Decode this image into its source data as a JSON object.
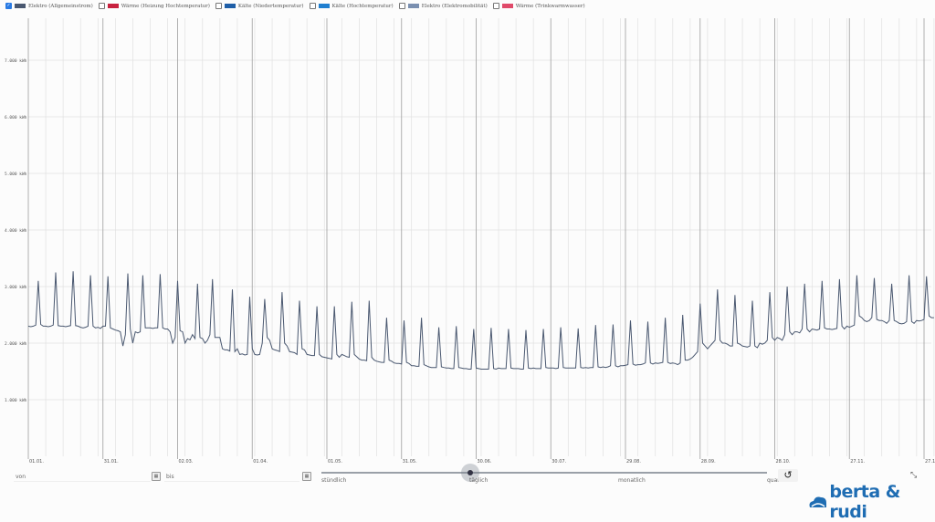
{
  "legend": [
    {
      "label": "Elektro (Allgemeinstrom)",
      "color": "#4a5870",
      "checked": true
    },
    {
      "label": "Wärme (Heizung Hochtemperatur)",
      "color": "#c8213f",
      "checked": false
    },
    {
      "label": "Kälte (Niedertemperatur)",
      "color": "#1f5fa8",
      "checked": false
    },
    {
      "label": "Kälte (Hochtemperatur)",
      "color": "#1f7fd0",
      "checked": false
    },
    {
      "label": "Elektro (Elektromobilität)",
      "color": "#7a8fb0",
      "checked": false
    },
    {
      "label": "Wärme (Trinkwarmwasser)",
      "color": "#e04a6a",
      "checked": false
    }
  ],
  "controls": {
    "from_label": "von",
    "to_label": "bis",
    "resolution_options": [
      "stündlich",
      "täglich",
      "monatlich",
      "quar"
    ],
    "resolution_selected": "täglich",
    "reset_icon": "undo-icon",
    "collapse_icon": "collapse-arrows-icon"
  },
  "logo": {
    "text": "berta & rudi",
    "color": "#1f6db3"
  },
  "chart_data": {
    "type": "line",
    "title": "",
    "xlabel": "",
    "ylabel": "",
    "ylim": [
      0,
      7800
    ],
    "yticks": [
      1000,
      2000,
      3000,
      4000,
      5000,
      6000,
      7000
    ],
    "ytick_labels": [
      "1.000 kWh",
      "2.000 kWh",
      "3.000 kWh",
      "4.000 kWh",
      "5.000 kWh",
      "6.000 kWh",
      "7.000 kWh"
    ],
    "xtick_labels": [
      "01.01.",
      "31.01.",
      "02.03.",
      "01.04.",
      "01.05.",
      "31.05.",
      "30.06.",
      "30.07.",
      "29.08.",
      "28.09.",
      "28.10.",
      "27.11.",
      "27.12."
    ],
    "xtick_days": [
      0,
      30,
      60,
      90,
      120,
      150,
      180,
      210,
      240,
      270,
      300,
      330,
      360
    ],
    "grid": true,
    "series": [
      {
        "name": "Elektro (Allgemeinstrom)",
        "color": "#4a5870",
        "values": [
          2300,
          2290,
          2300,
          2320,
          3100,
          2330,
          2300,
          2300,
          2290,
          2300,
          2320,
          3250,
          2310,
          2300,
          2300,
          2290,
          2300,
          2310,
          3270,
          2310,
          2300,
          2280,
          2270,
          2280,
          2300,
          3200,
          2300,
          2270,
          2280,
          2260,
          2300,
          2300,
          3180,
          2270,
          2250,
          2230,
          2220,
          2200,
          1950,
          2150,
          3230,
          2250,
          2000,
          2200,
          2180,
          2200,
          3200,
          2270,
          2270,
          2270,
          2260,
          2270,
          2270,
          3220,
          2270,
          2250,
          2250,
          2200,
          2000,
          2100,
          3100,
          2220,
          2200,
          2000,
          2080,
          2060,
          2150,
          2080,
          3050,
          2100,
          2080,
          2000,
          2050,
          2150,
          3130,
          2100,
          2100,
          2100,
          1900,
          1880,
          1880,
          1860,
          2950,
          1850,
          1900,
          1800,
          1810,
          1790,
          1800,
          2820,
          1900,
          1800,
          1790,
          1800,
          2000,
          2780,
          2100,
          2050,
          1900,
          1880,
          1870,
          1850,
          2900,
          2000,
          1950,
          1850,
          1840,
          1830,
          1800,
          2750,
          1900,
          1880,
          1800,
          1790,
          1780,
          1780,
          2650,
          1800,
          1760,
          1750,
          1740,
          1730,
          1720,
          2650,
          1800,
          1750,
          1800,
          1780,
          1760,
          1750,
          2730,
          1800,
          1760,
          1720,
          1700,
          1700,
          1690,
          2750,
          1750,
          1700,
          1680,
          1670,
          1660,
          1660,
          2450,
          1700,
          1680,
          1650,
          1640,
          1640,
          1630,
          2400,
          1660,
          1640,
          1600,
          1600,
          1590,
          1590,
          2450,
          1620,
          1600,
          1580,
          1570,
          1570,
          1570,
          2280,
          1580,
          1570,
          1560,
          1560,
          1550,
          1550,
          2300,
          1570,
          1560,
          1550,
          1550,
          1540,
          1540,
          2250,
          1560,
          1550,
          1540,
          1540,
          1540,
          1540,
          2270,
          1550,
          1540,
          1560,
          1550,
          1550,
          1550,
          2250,
          1560,
          1550,
          1550,
          1550,
          1540,
          1540,
          2230,
          1560,
          1550,
          1560,
          1550,
          1550,
          1550,
          2250,
          1570,
          1560,
          1560,
          1560,
          1550,
          1560,
          2280,
          1570,
          1560,
          1560,
          1560,
          1560,
          1560,
          2260,
          1570,
          1560,
          1570,
          1560,
          1570,
          1570,
          2320,
          1580,
          1570,
          1580,
          1570,
          1580,
          1600,
          2330,
          1600,
          1580,
          1600,
          1600,
          1610,
          1620,
          2400,
          1630,
          1610,
          1620,
          1620,
          1630,
          1650,
          2380,
          1650,
          1630,
          1650,
          1640,
          1650,
          1660,
          2450,
          1660,
          1640,
          1650,
          1640,
          1620,
          1650,
          2500,
          1700,
          1700,
          1720,
          1750,
          1800,
          1850,
          2700,
          2000,
          1950,
          1900,
          1950,
          2000,
          2050,
          2950,
          2050,
          2000,
          2000,
          1980,
          1950,
          1950,
          2850,
          2000,
          1980,
          1950,
          1940,
          1930,
          1950,
          2750,
          1950,
          1920,
          2000,
          1980,
          2000,
          2050,
          2900,
          2100,
          2050,
          2100,
          2080,
          2050,
          2150,
          3000,
          2200,
          2150,
          2200,
          2200,
          2180,
          2250,
          3050,
          2250,
          2200,
          2250,
          2240,
          2230,
          2250,
          3100,
          2270,
          2250,
          2250,
          2240,
          2250,
          2260,
          3130,
          2300,
          2250,
          2300,
          2280,
          2300,
          2320,
          3200,
          2480,
          2450,
          2400,
          2380,
          2400,
          2450,
          3150,
          2420,
          2400,
          2400,
          2380,
          2350,
          2400,
          3050,
          2400,
          2380,
          2350,
          2340,
          2350,
          2380,
          3200,
          2380,
          2350,
          2400,
          2390,
          2400,
          2420,
          3180,
          2480,
          2450,
          2450
        ]
      }
    ]
  }
}
